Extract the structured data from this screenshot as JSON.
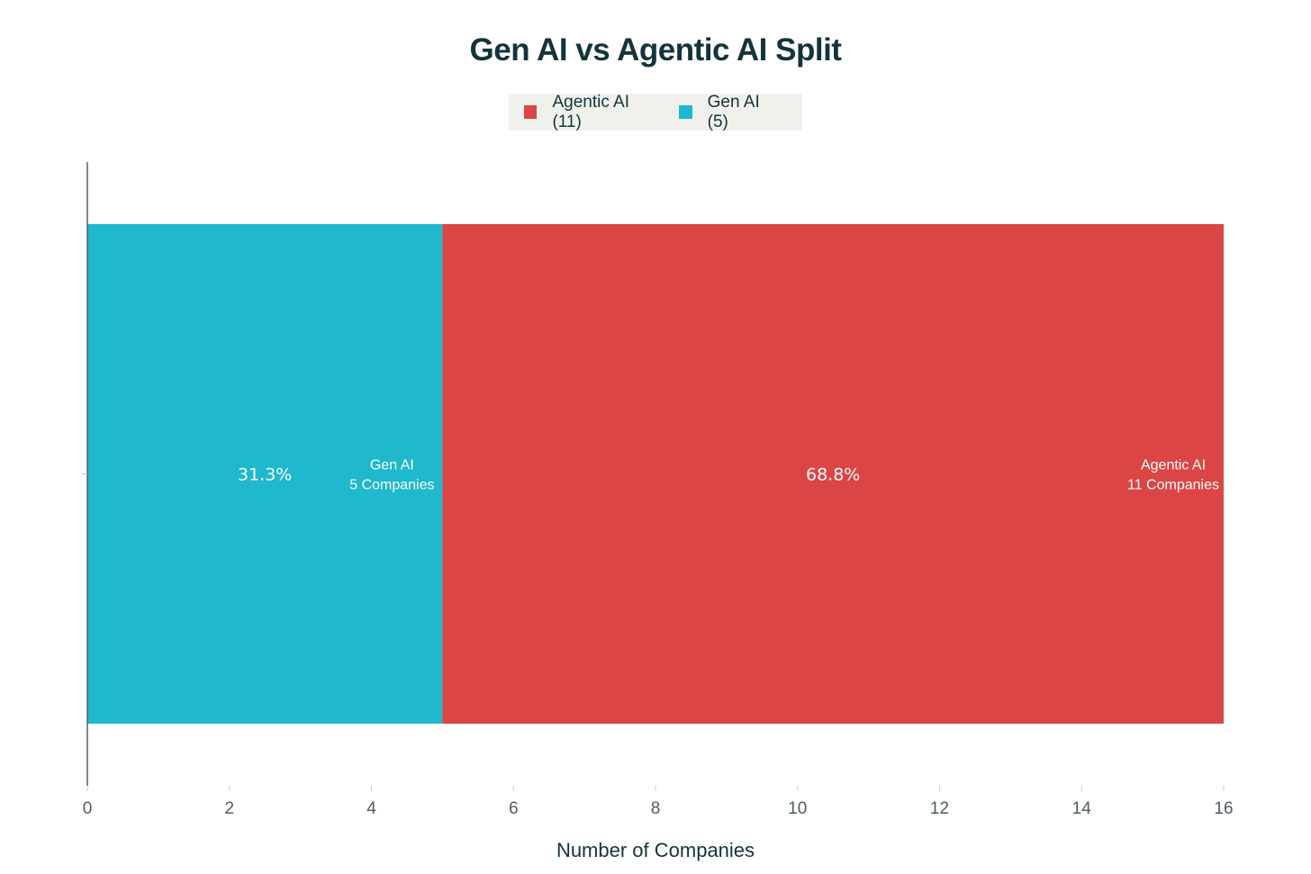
{
  "chart_data": {
    "type": "bar",
    "orientation": "horizontal",
    "stacked": true,
    "title": "Gen AI vs Agentic AI Split",
    "xlabel": "Number of Companies",
    "ylabel": "",
    "xlim": [
      0,
      16
    ],
    "xticks": [
      0,
      2,
      4,
      6,
      8,
      10,
      12,
      14,
      16
    ],
    "grid": false,
    "legend_position": "top-center",
    "legend": [
      {
        "label": "Agentic AI (11)",
        "color": "#db4545"
      },
      {
        "label": "Gen AI (5)",
        "color": "#1fb8cd"
      }
    ],
    "series": [
      {
        "name": "Gen AI",
        "values": [
          5
        ],
        "color": "#1fb8cd",
        "percent_label": "31.3%",
        "end_label": [
          "Gen AI",
          "5 Companies"
        ]
      },
      {
        "name": "Agentic AI",
        "values": [
          11
        ],
        "color": "#db4545",
        "percent_label": "68.8%",
        "end_label": [
          "Agentic AI",
          "11 Companies"
        ]
      }
    ]
  }
}
